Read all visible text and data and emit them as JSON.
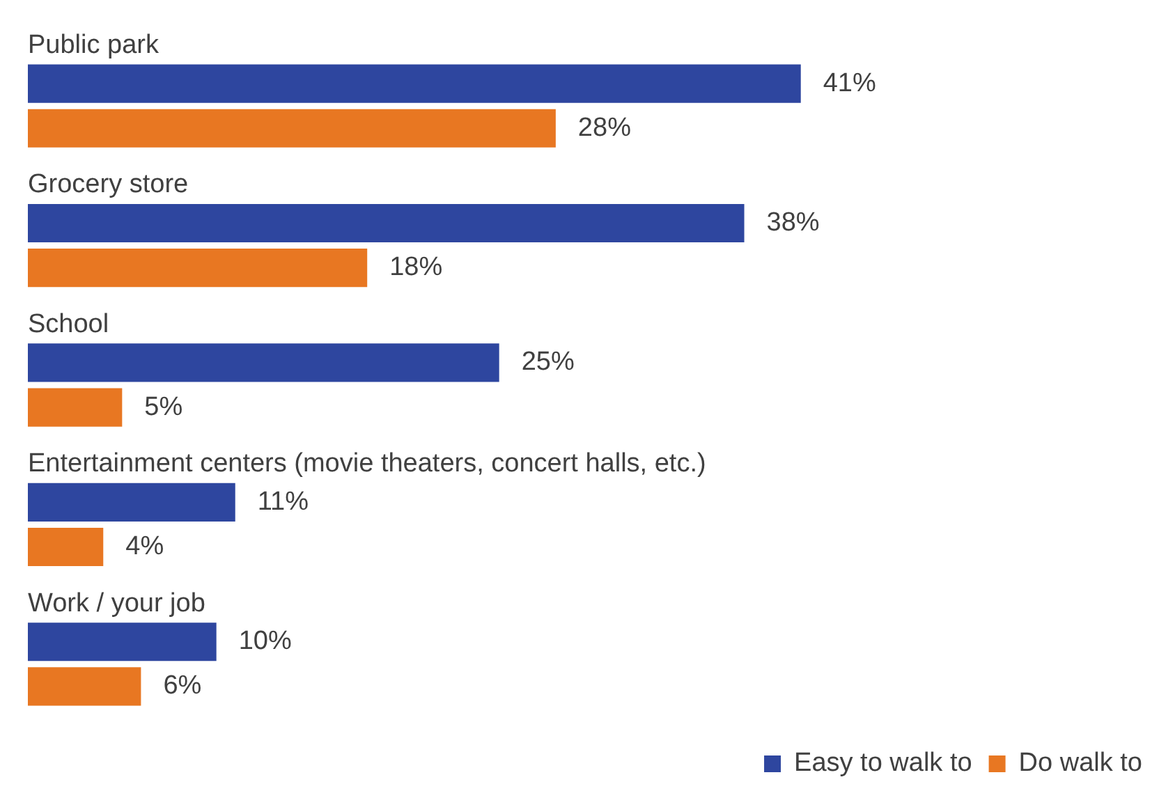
{
  "chart_data": {
    "type": "bar",
    "orientation": "horizontal",
    "categories": [
      "Public park",
      "Grocery store",
      "School",
      "Entertainment centers (movie theaters, concert halls, etc.)",
      "Work / your job"
    ],
    "series": [
      {
        "name": "Easy to walk to",
        "color": "#2e469f",
        "values": [
          41,
          38,
          25,
          11,
          10
        ],
        "value_labels": [
          "41%",
          "38%",
          "25%",
          "11%",
          "10%"
        ]
      },
      {
        "name": "Do walk to",
        "color": "#e87722",
        "values": [
          28,
          18,
          5,
          4,
          6
        ],
        "value_labels": [
          "28%",
          "18%",
          "5%",
          "4%",
          "6%"
        ]
      }
    ],
    "legend": "bottom right"
  }
}
